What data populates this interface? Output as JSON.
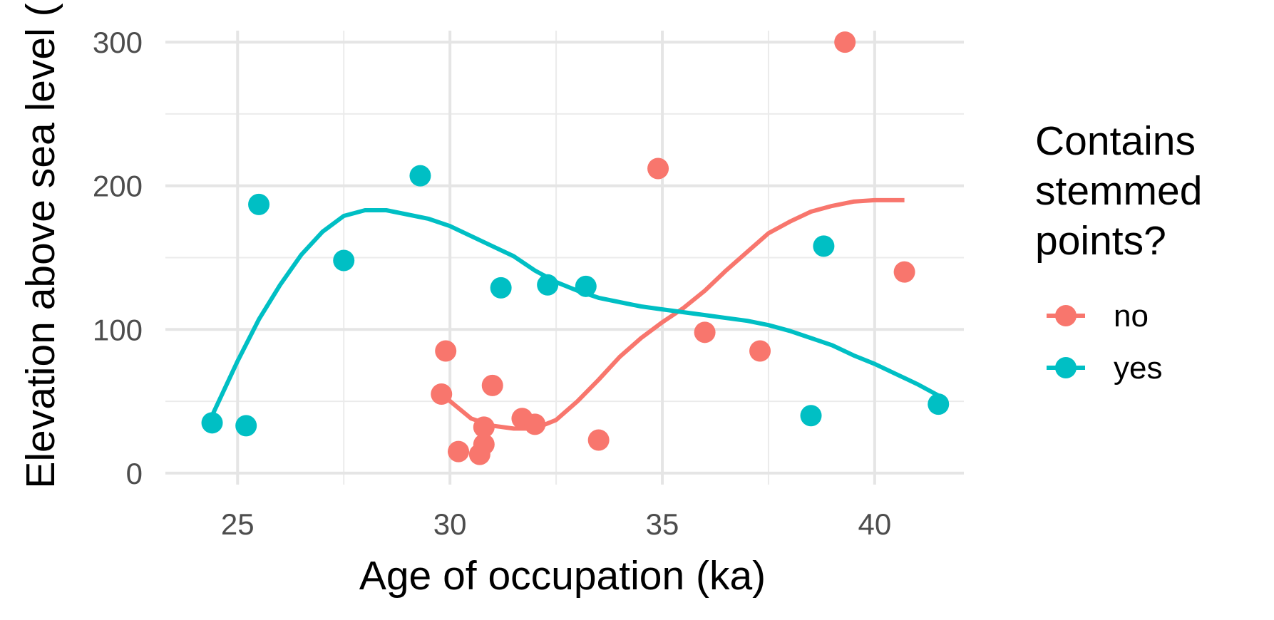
{
  "chart_data": {
    "type": "scatter",
    "xlabel": "Age of occupation (ka)",
    "ylabel": "Elevation above sea level (",
    "xlim": [
      23.3,
      42.1
    ],
    "ylim": [
      -8,
      308
    ],
    "x_ticks": [
      25,
      30,
      35,
      40
    ],
    "x_minor": [
      27.5,
      32.5,
      37.5
    ],
    "y_ticks": [
      0,
      100,
      200,
      300
    ],
    "y_minor": [
      50,
      150,
      250
    ],
    "grid": true,
    "legend": {
      "title_lines": [
        "Contains",
        "stemmed",
        "points?"
      ],
      "placement": "right"
    },
    "series": [
      {
        "name": "no",
        "color": "#F8766D",
        "points": [
          {
            "x": 29.8,
            "y": 55
          },
          {
            "x": 29.9,
            "y": 85
          },
          {
            "x": 30.2,
            "y": 15
          },
          {
            "x": 30.7,
            "y": 13
          },
          {
            "x": 30.8,
            "y": 20
          },
          {
            "x": 30.8,
            "y": 32
          },
          {
            "x": 31.0,
            "y": 61
          },
          {
            "x": 31.7,
            "y": 38
          },
          {
            "x": 32.0,
            "y": 34
          },
          {
            "x": 33.5,
            "y": 23
          },
          {
            "x": 34.9,
            "y": 212
          },
          {
            "x": 36.0,
            "y": 98
          },
          {
            "x": 37.3,
            "y": 85
          },
          {
            "x": 39.3,
            "y": 300
          },
          {
            "x": 40.7,
            "y": 140
          }
        ],
        "smooth": [
          {
            "x": 29.8,
            "y": 55
          },
          {
            "x": 30.5,
            "y": 38
          },
          {
            "x": 31.0,
            "y": 33
          },
          {
            "x": 31.5,
            "y": 31
          },
          {
            "x": 32.0,
            "y": 31
          },
          {
            "x": 32.5,
            "y": 37
          },
          {
            "x": 33.0,
            "y": 50
          },
          {
            "x": 33.5,
            "y": 65
          },
          {
            "x": 34.0,
            "y": 81
          },
          {
            "x": 34.5,
            "y": 94
          },
          {
            "x": 35.0,
            "y": 105
          },
          {
            "x": 35.5,
            "y": 115
          },
          {
            "x": 36.0,
            "y": 127
          },
          {
            "x": 36.5,
            "y": 141
          },
          {
            "x": 37.0,
            "y": 154
          },
          {
            "x": 37.5,
            "y": 167
          },
          {
            "x": 38.0,
            "y": 175
          },
          {
            "x": 38.5,
            "y": 182
          },
          {
            "x": 39.0,
            "y": 186
          },
          {
            "x": 39.5,
            "y": 189
          },
          {
            "x": 40.0,
            "y": 190
          },
          {
            "x": 40.7,
            "y": 190
          }
        ]
      },
      {
        "name": "yes",
        "color": "#00BFC4",
        "points": [
          {
            "x": 24.4,
            "y": 35
          },
          {
            "x": 25.2,
            "y": 33
          },
          {
            "x": 25.5,
            "y": 187
          },
          {
            "x": 27.5,
            "y": 148
          },
          {
            "x": 29.3,
            "y": 207
          },
          {
            "x": 31.2,
            "y": 129
          },
          {
            "x": 32.3,
            "y": 131
          },
          {
            "x": 33.2,
            "y": 130
          },
          {
            "x": 38.5,
            "y": 40
          },
          {
            "x": 38.8,
            "y": 158
          },
          {
            "x": 41.5,
            "y": 48
          }
        ],
        "smooth": [
          {
            "x": 24.4,
            "y": 40
          },
          {
            "x": 25.0,
            "y": 78
          },
          {
            "x": 25.5,
            "y": 107
          },
          {
            "x": 26.0,
            "y": 131
          },
          {
            "x": 26.5,
            "y": 152
          },
          {
            "x": 27.0,
            "y": 168
          },
          {
            "x": 27.5,
            "y": 179
          },
          {
            "x": 28.0,
            "y": 183
          },
          {
            "x": 28.5,
            "y": 183
          },
          {
            "x": 29.0,
            "y": 180
          },
          {
            "x": 29.5,
            "y": 177
          },
          {
            "x": 30.0,
            "y": 172
          },
          {
            "x": 30.5,
            "y": 165
          },
          {
            "x": 31.0,
            "y": 158
          },
          {
            "x": 31.5,
            "y": 151
          },
          {
            "x": 32.0,
            "y": 141
          },
          {
            "x": 32.5,
            "y": 133
          },
          {
            "x": 33.0,
            "y": 127
          },
          {
            "x": 33.5,
            "y": 122
          },
          {
            "x": 34.0,
            "y": 119
          },
          {
            "x": 34.5,
            "y": 116
          },
          {
            "x": 35.0,
            "y": 114
          },
          {
            "x": 35.5,
            "y": 112
          },
          {
            "x": 36.0,
            "y": 110
          },
          {
            "x": 36.5,
            "y": 108
          },
          {
            "x": 37.0,
            "y": 106
          },
          {
            "x": 37.5,
            "y": 103
          },
          {
            "x": 38.0,
            "y": 99
          },
          {
            "x": 38.5,
            "y": 94
          },
          {
            "x": 39.0,
            "y": 89
          },
          {
            "x": 39.5,
            "y": 82
          },
          {
            "x": 40.0,
            "y": 76
          },
          {
            "x": 40.5,
            "y": 69
          },
          {
            "x": 41.0,
            "y": 62
          },
          {
            "x": 41.5,
            "y": 54
          }
        ]
      }
    ]
  }
}
